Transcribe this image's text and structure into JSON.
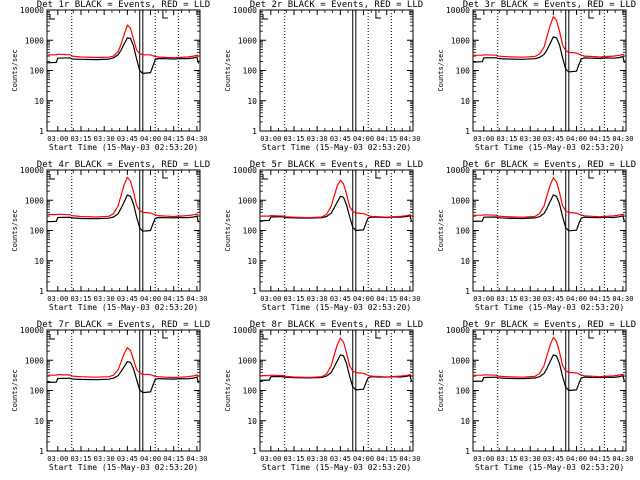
{
  "chart_data": {
    "layout": "3x3 grid of detector panels",
    "y_scale": "log",
    "ylim": [
      1,
      10000
    ],
    "y_ticks": [
      {
        "value": 1,
        "label": "1"
      },
      {
        "value": 10,
        "label": "10"
      },
      {
        "value": 100,
        "label": "100"
      },
      {
        "value": 1000,
        "label": "1000"
      },
      {
        "value": 10000,
        "label": "10000"
      }
    ],
    "ylabel": "Counts/sec",
    "xlabel": "Start Time (15-May-03 02:53:20)",
    "xlim_minutes_after_0300": [
      -7,
      92
    ],
    "x_ticks": [
      "03:00",
      "03:15",
      "03:30",
      "03:45",
      "04:00",
      "04:15",
      "04:30"
    ],
    "x_tick_minutes": [
      0,
      15,
      30,
      45,
      60,
      75,
      90
    ],
    "vertical_lines": {
      "dotted_minutes": [
        9,
        63,
        78
      ],
      "solid_minutes": [
        53,
        55
      ]
    },
    "colors": {
      "events": "#000000",
      "lld": "#ff0000"
    },
    "panels": [
      {
        "title": "Det 1r BLACK = Events, RED = LLD",
        "type": "line",
        "x": [
          -7,
          -1,
          0,
          8,
          9,
          15,
          25,
          33,
          36,
          39,
          41,
          43,
          45,
          47,
          49,
          51,
          53,
          55,
          60,
          62,
          63,
          65,
          70,
          75,
          79,
          84,
          88,
          90,
          91
        ],
        "series": [
          {
            "name": "Events",
            "y": [
              180,
              185,
              255,
              262,
              240,
              235,
              230,
              238,
              260,
              330,
              480,
              780,
              1200,
              1150,
              650,
              240,
              100,
              80,
              85,
              160,
              230,
              250,
              245,
              240,
              250,
              245,
              260,
              280,
              170
            ]
          },
          {
            "name": "LLD",
            "y": [
              330,
              330,
              345,
              330,
              300,
              280,
              270,
              275,
              300,
              420,
              750,
              1600,
              3200,
              2500,
              1100,
              480,
              360,
              330,
              330,
              300,
              290,
              280,
              270,
              265,
              270,
              280,
              300,
              320,
              300
            ]
          }
        ]
      },
      {
        "title": "Det 2r BLACK = Events, RED = LLD",
        "type": "line",
        "x": [],
        "series": [
          {
            "name": "Events",
            "y": []
          },
          {
            "name": "LLD",
            "y": []
          }
        ]
      },
      {
        "title": "Det 3r BLACK = Events, RED = LLD",
        "type": "line",
        "x": [
          -7,
          -1,
          0,
          8,
          9,
          15,
          25,
          33,
          36,
          39,
          41,
          43,
          45,
          47,
          49,
          51,
          53,
          55,
          60,
          62,
          63,
          65,
          70,
          75,
          79,
          84,
          88,
          90,
          91
        ],
        "series": [
          {
            "name": "Events",
            "y": [
              190,
              195,
              260,
              265,
              250,
              240,
              235,
              245,
              270,
              340,
              500,
              800,
              1300,
              1200,
              700,
              260,
              110,
              90,
              95,
              180,
              240,
              260,
              255,
              250,
              260,
              255,
              270,
              290,
              180
            ]
          },
          {
            "name": "LLD",
            "y": [
              320,
              320,
              330,
              320,
              300,
              285,
              275,
              290,
              350,
              600,
              1400,
              3200,
              6000,
              4500,
              2000,
              700,
              450,
              400,
              380,
              340,
              320,
              300,
              290,
              280,
              290,
              300,
              320,
              340,
              320
            ]
          }
        ]
      },
      {
        "title": "Det 4r BLACK = Events, RED = LLD",
        "type": "line",
        "x": [
          -7,
          -1,
          0,
          8,
          9,
          15,
          25,
          33,
          36,
          39,
          41,
          43,
          45,
          47,
          49,
          51,
          53,
          55,
          60,
          62,
          63,
          65,
          70,
          75,
          79,
          84,
          88,
          90,
          91
        ],
        "series": [
          {
            "name": "Events",
            "y": [
              195,
              200,
              270,
              275,
              260,
              250,
              245,
              255,
              280,
              360,
              550,
              900,
              1500,
              1350,
              750,
              280,
              120,
              95,
              100,
              190,
              250,
              270,
              265,
              260,
              270,
              265,
              280,
              300,
              190
            ]
          },
          {
            "name": "LLD",
            "y": [
              340,
              335,
              345,
              330,
              310,
              290,
              280,
              295,
              360,
              650,
              1500,
              3400,
              5800,
              4300,
              1900,
              680,
              450,
              400,
              380,
              345,
              330,
              310,
              300,
              290,
              300,
              310,
              330,
              350,
              330
            ]
          }
        ]
      },
      {
        "title": "Det 5r BLACK = Events, RED = LLD",
        "type": "line",
        "x": [
          -7,
          -1,
          0,
          8,
          9,
          15,
          25,
          33,
          36,
          39,
          41,
          43,
          45,
          47,
          49,
          51,
          53,
          55,
          60,
          62,
          63,
          65,
          70,
          75,
          79,
          84,
          88,
          90,
          91
        ],
        "series": [
          {
            "name": "Events",
            "y": [
              210,
              215,
              280,
              285,
              270,
              260,
              255,
              265,
              290,
              370,
              560,
              880,
              1350,
              1250,
              700,
              290,
              130,
              100,
              105,
              200,
              260,
              280,
              275,
              270,
              280,
              275,
              290,
              310,
              200
            ]
          },
          {
            "name": "LLD",
            "y": [
              300,
              300,
              310,
              300,
              285,
              275,
              265,
              280,
              340,
              620,
              1400,
              3000,
              4600,
              3500,
              1600,
              620,
              430,
              380,
              360,
              330,
              310,
              295,
              285,
              275,
              285,
              295,
              310,
              330,
              310
            ]
          }
        ]
      },
      {
        "title": "Det 6r BLACK = Events, RED = LLD",
        "type": "line",
        "x": [
          -7,
          -1,
          0,
          8,
          9,
          15,
          25,
          33,
          36,
          39,
          41,
          43,
          45,
          47,
          49,
          51,
          53,
          55,
          60,
          62,
          63,
          65,
          70,
          75,
          79,
          84,
          88,
          90,
          91
        ],
        "series": [
          {
            "name": "Events",
            "y": [
              200,
              205,
              275,
              280,
              265,
              255,
              250,
              260,
              285,
              365,
              560,
              920,
              1500,
              1350,
              760,
              285,
              125,
              98,
              102,
              195,
              255,
              275,
              270,
              265,
              275,
              270,
              285,
              305,
              195
            ]
          },
          {
            "name": "LLD",
            "y": [
              320,
              320,
              330,
              320,
              300,
              285,
              275,
              290,
              360,
              660,
              1500,
              3300,
              5500,
              4100,
              1800,
              660,
              440,
              395,
              375,
              340,
              325,
              305,
              295,
              285,
              295,
              305,
              325,
              345,
              325
            ]
          }
        ]
      },
      {
        "title": "Det 7r BLACK = Events, RED = LLD",
        "type": "line",
        "x": [
          -7,
          -1,
          0,
          8,
          9,
          15,
          25,
          33,
          36,
          39,
          41,
          43,
          45,
          47,
          49,
          51,
          53,
          55,
          60,
          62,
          63,
          65,
          70,
          75,
          79,
          84,
          88,
          90,
          91
        ],
        "series": [
          {
            "name": "Events",
            "y": [
              185,
              190,
              250,
              255,
              240,
              232,
              228,
              236,
              255,
              310,
              430,
              620,
              900,
              850,
              520,
              230,
              105,
              85,
              90,
              170,
              230,
              248,
              242,
              238,
              248,
              243,
              258,
              278,
              175
            ]
          },
          {
            "name": "LLD",
            "y": [
              320,
              320,
              335,
              325,
              300,
              285,
              275,
              285,
              320,
              480,
              900,
              1700,
              2600,
              2100,
              1050,
              500,
              380,
              345,
              335,
              305,
              295,
              285,
              275,
              270,
              275,
              285,
              305,
              325,
              305
            ]
          }
        ]
      },
      {
        "title": "Det 8r BLACK = Events, RED = LLD",
        "type": "line",
        "x": [
          -7,
          -1,
          0,
          8,
          9,
          15,
          25,
          33,
          36,
          39,
          41,
          43,
          45,
          47,
          49,
          51,
          53,
          55,
          60,
          62,
          63,
          65,
          70,
          75,
          79,
          84,
          88,
          90,
          91
        ],
        "series": [
          {
            "name": "Events",
            "y": [
              215,
              220,
              285,
              290,
              275,
              265,
              260,
              270,
              300,
              390,
              600,
              950,
              1500,
              1400,
              780,
              300,
              135,
              105,
              110,
              205,
              265,
              285,
              280,
              275,
              285,
              280,
              295,
              315,
              205
            ]
          },
          {
            "name": "LLD",
            "y": [
              310,
              310,
              320,
              310,
              295,
              280,
              270,
              285,
              350,
              650,
              1500,
              3300,
              5400,
              4000,
              1750,
              650,
              440,
              390,
              370,
              335,
              315,
              300,
              290,
              280,
              290,
              300,
              315,
              335,
              315
            ]
          }
        ]
      },
      {
        "title": "Det 9r BLACK = Events, RED = LLD",
        "type": "line",
        "x": [
          -7,
          -1,
          0,
          8,
          9,
          15,
          25,
          33,
          36,
          39,
          41,
          43,
          45,
          47,
          49,
          51,
          53,
          55,
          60,
          62,
          63,
          65,
          70,
          75,
          79,
          84,
          88,
          90,
          91
        ],
        "series": [
          {
            "name": "Events",
            "y": [
              200,
              205,
              270,
              275,
              262,
              252,
              248,
              258,
              285,
              365,
              560,
              920,
              1500,
              1380,
              770,
              290,
              128,
              100,
              105,
              198,
              258,
              278,
              272,
              268,
              278,
              272,
              288,
              308,
              198
            ]
          },
          {
            "name": "LLD",
            "y": [
              320,
              320,
              330,
              320,
              300,
              286,
              276,
              292,
              362,
              670,
              1520,
              3350,
              5600,
              4200,
              1850,
              670,
              445,
              398,
              378,
              342,
              326,
              306,
              296,
              286,
              296,
              306,
              326,
              346,
              326
            ]
          }
        ]
      }
    ]
  }
}
